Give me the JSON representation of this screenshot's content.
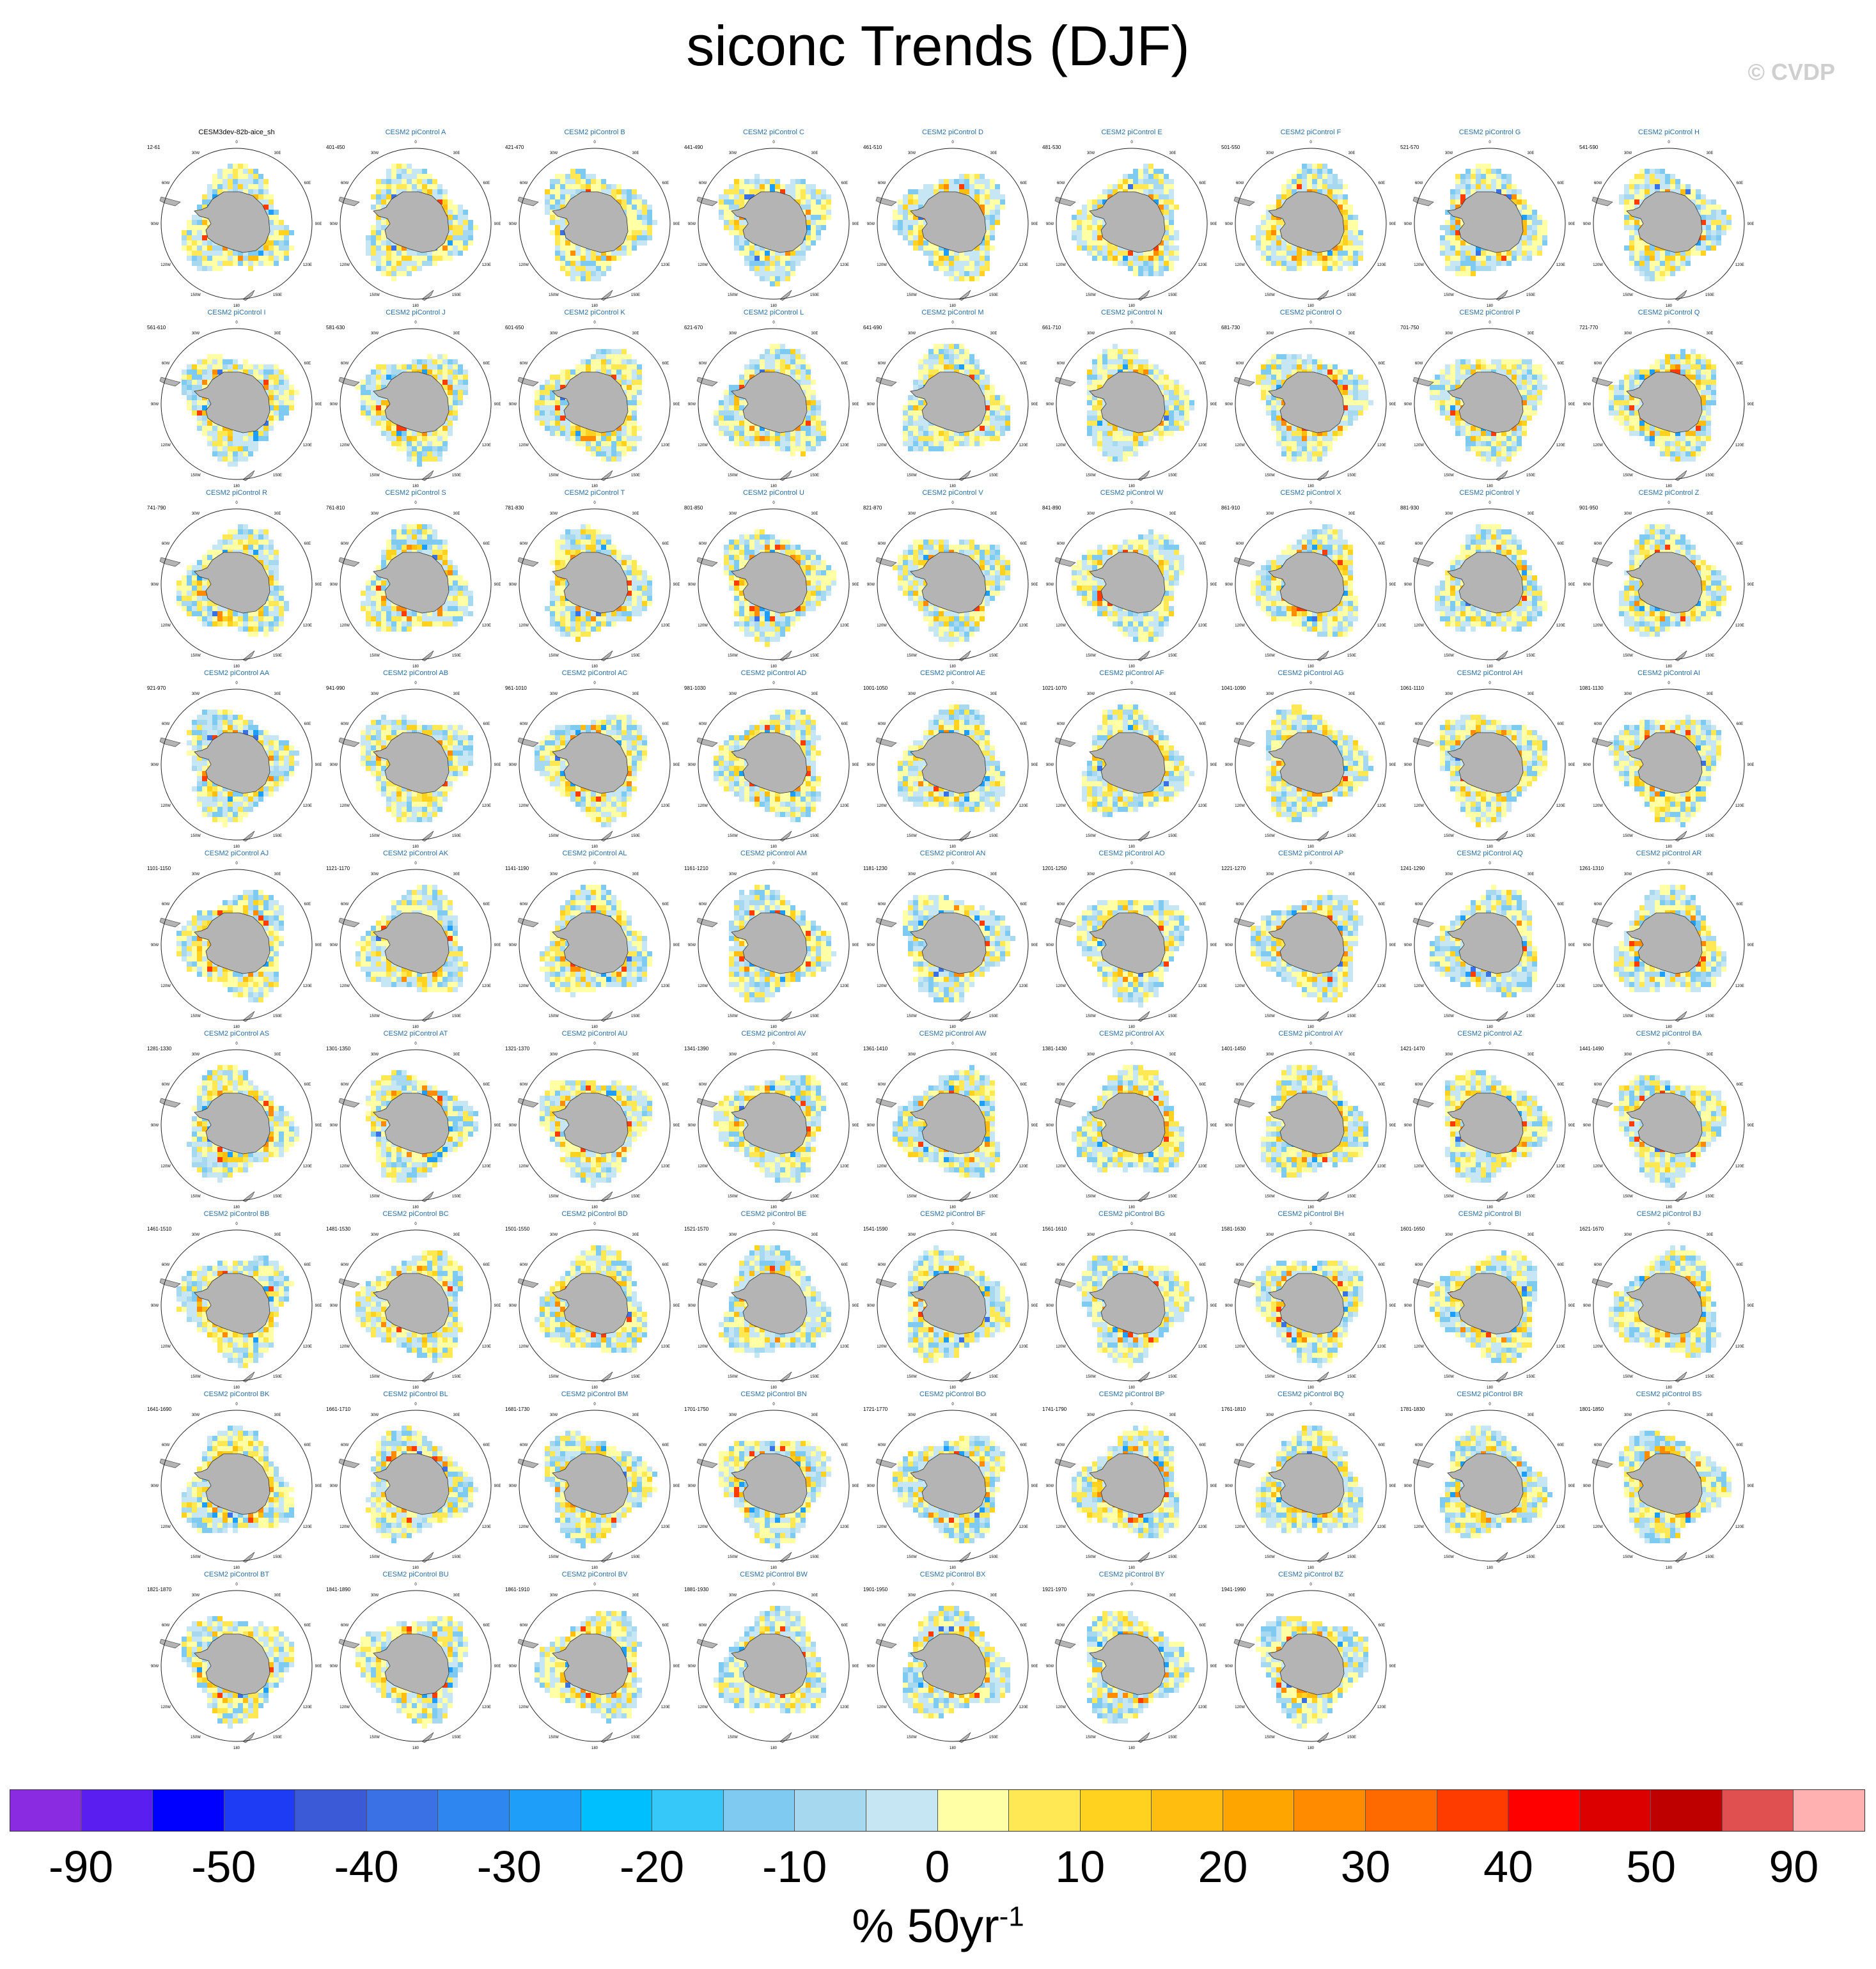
{
  "title": "siconc Trends (DJF)",
  "credit": "© CVDP",
  "panels": [
    {
      "title": "CESM3dev-82b-aice_sh",
      "years": "12-61"
    },
    {
      "title": "CESM2 piControl A",
      "years": "401-450"
    },
    {
      "title": "CESM2 piControl B",
      "years": "421-470"
    },
    {
      "title": "CESM2 piControl C",
      "years": "441-490"
    },
    {
      "title": "CESM2 piControl D",
      "years": "461-510"
    },
    {
      "title": "CESM2 piControl E",
      "years": "481-530"
    },
    {
      "title": "CESM2 piControl F",
      "years": "501-550"
    },
    {
      "title": "CESM2 piControl G",
      "years": "521-570"
    },
    {
      "title": "CESM2 piControl H",
      "years": "541-590"
    },
    {
      "title": "CESM2 piControl I",
      "years": "561-610"
    },
    {
      "title": "CESM2 piControl J",
      "years": "581-630"
    },
    {
      "title": "CESM2 piControl K",
      "years": "601-650"
    },
    {
      "title": "CESM2 piControl L",
      "years": "621-670"
    },
    {
      "title": "CESM2 piControl M",
      "years": "641-690"
    },
    {
      "title": "CESM2 piControl N",
      "years": "661-710"
    },
    {
      "title": "CESM2 piControl O",
      "years": "681-730"
    },
    {
      "title": "CESM2 piControl P",
      "years": "701-750"
    },
    {
      "title": "CESM2 piControl Q",
      "years": "721-770"
    },
    {
      "title": "CESM2 piControl R",
      "years": "741-790"
    },
    {
      "title": "CESM2 piControl S",
      "years": "761-810"
    },
    {
      "title": "CESM2 piControl T",
      "years": "781-830"
    },
    {
      "title": "CESM2 piControl U",
      "years": "801-850"
    },
    {
      "title": "CESM2 piControl V",
      "years": "821-870"
    },
    {
      "title": "CESM2 piControl W",
      "years": "841-890"
    },
    {
      "title": "CESM2 piControl X",
      "years": "861-910"
    },
    {
      "title": "CESM2 piControl Y",
      "years": "881-930"
    },
    {
      "title": "CESM2 piControl Z",
      "years": "901-950"
    },
    {
      "title": "CESM2 piControl AA",
      "years": "921-970"
    },
    {
      "title": "CESM2 piControl AB",
      "years": "941-990"
    },
    {
      "title": "CESM2 piControl AC",
      "years": "961-1010"
    },
    {
      "title": "CESM2 piControl AD",
      "years": "981-1030"
    },
    {
      "title": "CESM2 piControl AE",
      "years": "1001-1050"
    },
    {
      "title": "CESM2 piControl AF",
      "years": "1021-1070"
    },
    {
      "title": "CESM2 piControl AG",
      "years": "1041-1090"
    },
    {
      "title": "CESM2 piControl AH",
      "years": "1061-1110"
    },
    {
      "title": "CESM2 piControl AI",
      "years": "1081-1130"
    },
    {
      "title": "CESM2 piControl AJ",
      "years": "1101-1150"
    },
    {
      "title": "CESM2 piControl AK",
      "years": "1121-1170"
    },
    {
      "title": "CESM2 piControl AL",
      "years": "1141-1190"
    },
    {
      "title": "CESM2 piControl AM",
      "years": "1161-1210"
    },
    {
      "title": "CESM2 piControl AN",
      "years": "1181-1230"
    },
    {
      "title": "CESM2 piControl AO",
      "years": "1201-1250"
    },
    {
      "title": "CESM2 piControl AP",
      "years": "1221-1270"
    },
    {
      "title": "CESM2 piControl AQ",
      "years": "1241-1290"
    },
    {
      "title": "CESM2 piControl AR",
      "years": "1261-1310"
    },
    {
      "title": "CESM2 piControl AS",
      "years": "1281-1330"
    },
    {
      "title": "CESM2 piControl AT",
      "years": "1301-1350"
    },
    {
      "title": "CESM2 piControl AU",
      "years": "1321-1370"
    },
    {
      "title": "CESM2 piControl AV",
      "years": "1341-1390"
    },
    {
      "title": "CESM2 piControl AW",
      "years": "1361-1410"
    },
    {
      "title": "CESM2 piControl AX",
      "years": "1381-1430"
    },
    {
      "title": "CESM2 piControl AY",
      "years": "1401-1450"
    },
    {
      "title": "CESM2 piControl AZ",
      "years": "1421-1470"
    },
    {
      "title": "CESM2 piControl BA",
      "years": "1441-1490"
    },
    {
      "title": "CESM2 piControl BB",
      "years": "1461-1510"
    },
    {
      "title": "CESM2 piControl BC",
      "years": "1481-1530"
    },
    {
      "title": "CESM2 piControl BD",
      "years": "1501-1550"
    },
    {
      "title": "CESM2 piControl BE",
      "years": "1521-1570"
    },
    {
      "title": "CESM2 piControl BF",
      "years": "1541-1590"
    },
    {
      "title": "CESM2 piControl BG",
      "years": "1561-1610"
    },
    {
      "title": "CESM2 piControl BH",
      "years": "1581-1630"
    },
    {
      "title": "CESM2 piControl BI",
      "years": "1601-1650"
    },
    {
      "title": "CESM2 piControl BJ",
      "years": "1621-1670"
    },
    {
      "title": "CESM2 piControl BK",
      "years": "1641-1690"
    },
    {
      "title": "CESM2 piControl BL",
      "years": "1661-1710"
    },
    {
      "title": "CESM2 piControl BM",
      "years": "1681-1730"
    },
    {
      "title": "CESM2 piControl BN",
      "years": "1701-1750"
    },
    {
      "title": "CESM2 piControl BO",
      "years": "1721-1770"
    },
    {
      "title": "CESM2 piControl BP",
      "years": "1741-1790"
    },
    {
      "title": "CESM2 piControl BQ",
      "years": "1761-1810"
    },
    {
      "title": "CESM2 piControl BR",
      "years": "1781-1830"
    },
    {
      "title": "CESM2 piControl BS",
      "years": "1801-1850"
    },
    {
      "title": "CESM2 piControl BT",
      "years": "1821-1870"
    },
    {
      "title": "CESM2 piControl BU",
      "years": "1841-1890"
    },
    {
      "title": "CESM2 piControl BV",
      "years": "1861-1910"
    },
    {
      "title": "CESM2 piControl BW",
      "years": "1881-1930"
    },
    {
      "title": "CESM2 piControl BX",
      "years": "1901-1950"
    },
    {
      "title": "CESM2 piControl BY",
      "years": "1921-1970"
    },
    {
      "title": "CESM2 piControl BZ",
      "years": "1941-1990"
    }
  ],
  "grid_columns": 9,
  "colorbar": {
    "colors": [
      "#8a2be2",
      "#5a1ef0",
      "#0000ff",
      "#1f3cf5",
      "#3a5ad8",
      "#3a72e6",
      "#2e86f0",
      "#1e9ef8",
      "#00bfff",
      "#35c8f8",
      "#7ecaf0",
      "#a6d8f0",
      "#c6e6f4",
      "#ffffa6",
      "#ffe854",
      "#ffd21f",
      "#ffbe0f",
      "#ffa500",
      "#ff8c00",
      "#ff6a00",
      "#ff3c00",
      "#ff0000",
      "#dc0000",
      "#be0000",
      "#e05050",
      "#ffb0b0"
    ],
    "tick_labels": [
      "-90",
      "-50",
      "-40",
      "-30",
      "-20",
      "-10",
      "0",
      "10",
      "20",
      "30",
      "40",
      "50",
      "90"
    ],
    "units": "% 50yr",
    "units_exponent": "-1"
  },
  "map_labels": {
    "lon_labels": [
      "0",
      "30E",
      "60E",
      "90E",
      "120E",
      "150E",
      "180",
      "150W",
      "120W",
      "90W",
      "60W",
      "30W"
    ]
  }
}
